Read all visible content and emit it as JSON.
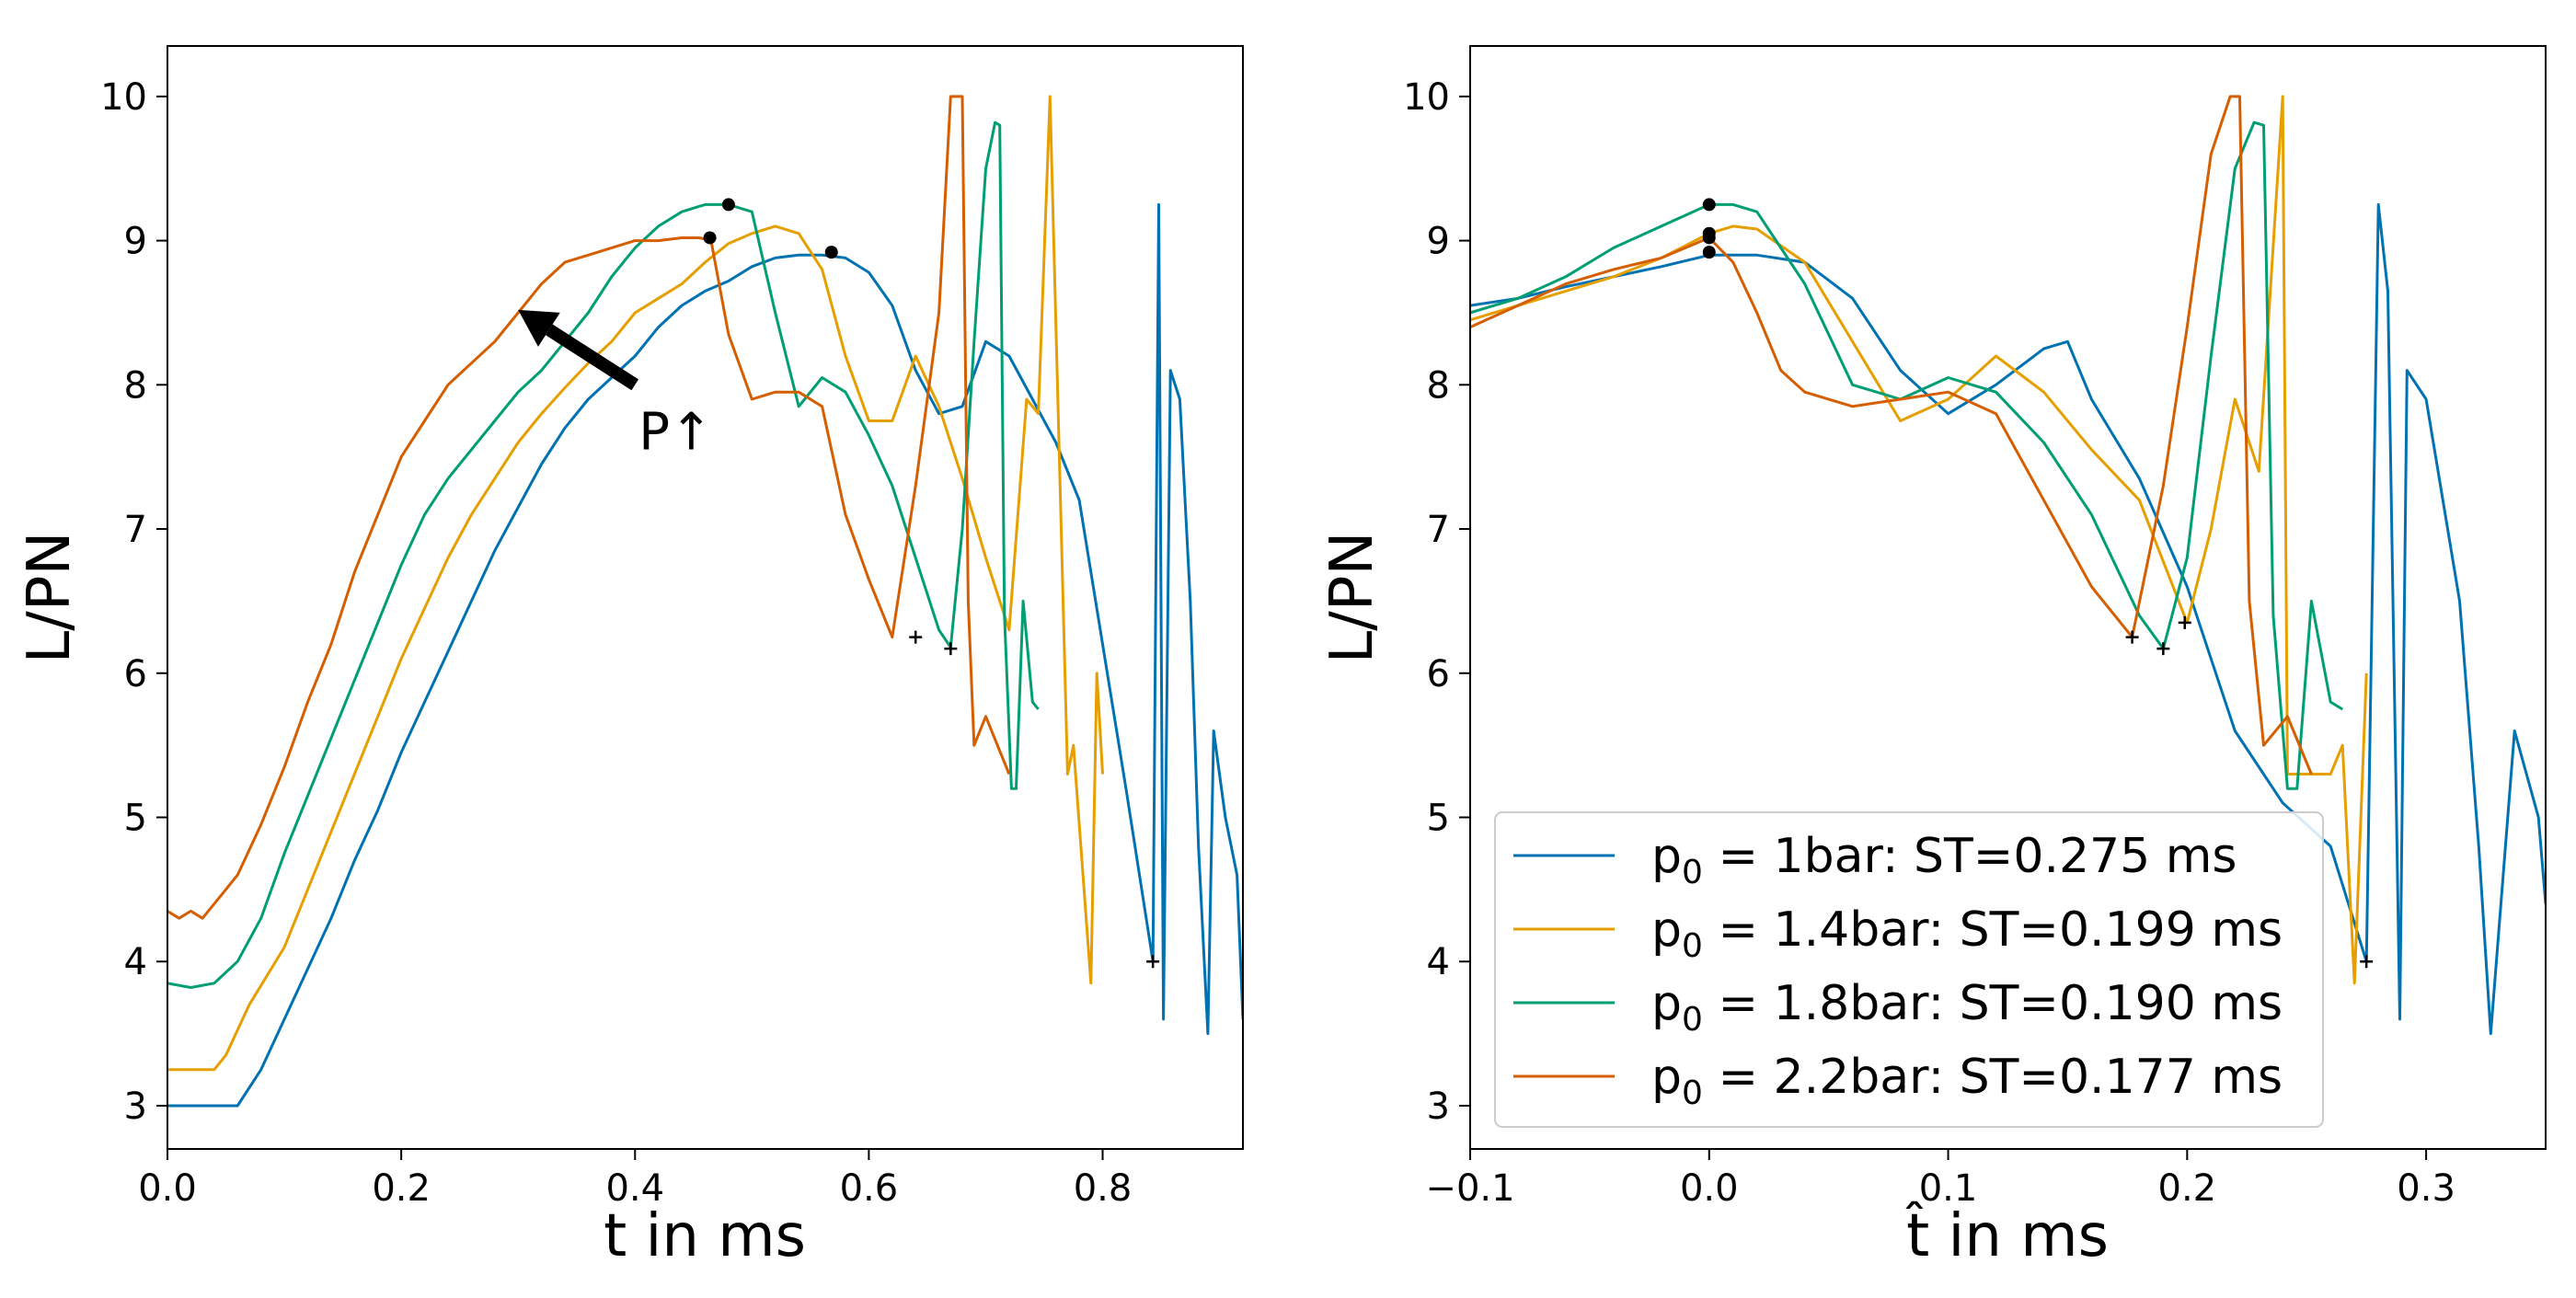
{
  "colors": {
    "series": [
      "#0072b2",
      "#e69f00",
      "#009e73",
      "#d55e00"
    ],
    "marker": "#000000",
    "frame": "#000000"
  },
  "chart_data": [
    {
      "type": "line",
      "xlabel": "t in ms",
      "ylabel": "L/PN",
      "xlim": [
        0.0,
        0.92
      ],
      "ylim": [
        2.7,
        10.35
      ],
      "xticks": [
        0.0,
        0.2,
        0.4,
        0.6,
        0.8
      ],
      "xtick_labels": [
        "0.0",
        "0.2",
        "0.4",
        "0.6",
        "0.8"
      ],
      "yticks": [
        3,
        4,
        5,
        6,
        7,
        8,
        9,
        10
      ],
      "ytick_labels": [
        "3",
        "4",
        "5",
        "6",
        "7",
        "8",
        "9",
        "10"
      ],
      "annotation": {
        "text": "P↑",
        "arrow_from": [
          0.4,
          8.0
        ],
        "arrow_to": [
          0.3,
          8.52
        ]
      },
      "series": [
        {
          "name": "p0=1bar",
          "x": [
            0.0,
            0.06,
            0.08,
            0.1,
            0.12,
            0.14,
            0.16,
            0.18,
            0.2,
            0.22,
            0.24,
            0.26,
            0.28,
            0.3,
            0.32,
            0.34,
            0.36,
            0.38,
            0.4,
            0.42,
            0.44,
            0.46,
            0.48,
            0.5,
            0.52,
            0.54,
            0.56,
            0.58,
            0.6,
            0.62,
            0.64,
            0.66,
            0.68,
            0.7,
            0.72,
            0.74,
            0.76,
            0.78,
            0.8,
            0.82,
            0.843,
            0.848,
            0.852,
            0.858,
            0.866,
            0.875,
            0.882,
            0.89,
            0.895,
            0.905,
            0.915,
            0.92
          ],
          "y": [
            3.0,
            3.0,
            3.25,
            3.6,
            3.95,
            4.3,
            4.7,
            5.05,
            5.45,
            5.8,
            6.15,
            6.5,
            6.85,
            7.15,
            7.45,
            7.7,
            7.9,
            8.05,
            8.2,
            8.4,
            8.55,
            8.65,
            8.72,
            8.82,
            8.88,
            8.9,
            8.9,
            8.88,
            8.78,
            8.55,
            8.1,
            7.8,
            7.85,
            8.3,
            8.2,
            7.9,
            7.6,
            7.2,
            6.2,
            5.2,
            4.0,
            9.25,
            3.6,
            8.1,
            7.9,
            6.5,
            4.8,
            3.5,
            5.6,
            5.0,
            4.6,
            3.6
          ],
          "markers": [
            {
              "x": 0.568,
              "y": 8.92,
              "type": "dot"
            },
            {
              "x": 0.843,
              "y": 4.0,
              "type": "plus"
            }
          ]
        },
        {
          "name": "p0=1.4bar",
          "x": [
            0.0,
            0.04,
            0.05,
            0.07,
            0.1,
            0.12,
            0.14,
            0.16,
            0.18,
            0.2,
            0.22,
            0.24,
            0.26,
            0.28,
            0.3,
            0.32,
            0.34,
            0.36,
            0.38,
            0.4,
            0.42,
            0.44,
            0.46,
            0.48,
            0.5,
            0.52,
            0.54,
            0.56,
            0.58,
            0.6,
            0.62,
            0.64,
            0.66,
            0.68,
            0.7,
            0.72,
            0.735,
            0.745,
            0.755,
            0.77,
            0.775,
            0.79,
            0.795,
            0.8
          ],
          "y": [
            3.25,
            3.25,
            3.35,
            3.7,
            4.1,
            4.5,
            4.9,
            5.3,
            5.7,
            6.1,
            6.45,
            6.8,
            7.1,
            7.35,
            7.6,
            7.8,
            7.98,
            8.15,
            8.3,
            8.5,
            8.6,
            8.7,
            8.85,
            8.98,
            9.05,
            9.1,
            9.05,
            8.8,
            8.2,
            7.75,
            7.75,
            8.2,
            7.85,
            7.35,
            6.8,
            6.3,
            7.9,
            7.8,
            10.0,
            5.3,
            5.5,
            3.85,
            6.0,
            5.3
          ]
        },
        {
          "name": "p0=1.8bar",
          "x": [
            0.0,
            0.02,
            0.04,
            0.06,
            0.08,
            0.1,
            0.12,
            0.14,
            0.16,
            0.18,
            0.2,
            0.22,
            0.24,
            0.26,
            0.28,
            0.3,
            0.32,
            0.34,
            0.36,
            0.38,
            0.4,
            0.42,
            0.44,
            0.46,
            0.47,
            0.48,
            0.5,
            0.52,
            0.54,
            0.56,
            0.58,
            0.6,
            0.62,
            0.64,
            0.66,
            0.67,
            0.68,
            0.69,
            0.7,
            0.708,
            0.712,
            0.716,
            0.722,
            0.726,
            0.732,
            0.74,
            0.745
          ],
          "y": [
            3.85,
            3.82,
            3.85,
            4.0,
            4.3,
            4.75,
            5.15,
            5.55,
            5.95,
            6.35,
            6.75,
            7.1,
            7.35,
            7.55,
            7.75,
            7.95,
            8.1,
            8.3,
            8.5,
            8.75,
            8.95,
            9.1,
            9.2,
            9.25,
            9.25,
            9.25,
            9.2,
            8.5,
            7.85,
            8.05,
            7.95,
            7.65,
            7.3,
            6.8,
            6.3,
            6.18,
            7.0,
            8.3,
            9.5,
            9.82,
            9.8,
            6.4,
            5.2,
            5.2,
            6.5,
            5.8,
            5.75
          ],
          "markers": [
            {
              "x": 0.48,
              "y": 9.25,
              "type": "dot"
            },
            {
              "x": 0.67,
              "y": 6.17,
              "type": "plus"
            }
          ]
        },
        {
          "name": "p0=2.2bar",
          "x": [
            0.0,
            0.01,
            0.02,
            0.03,
            0.04,
            0.05,
            0.06,
            0.08,
            0.1,
            0.12,
            0.14,
            0.16,
            0.18,
            0.2,
            0.22,
            0.24,
            0.26,
            0.28,
            0.3,
            0.32,
            0.34,
            0.36,
            0.38,
            0.4,
            0.42,
            0.44,
            0.455,
            0.465,
            0.48,
            0.5,
            0.52,
            0.54,
            0.56,
            0.58,
            0.6,
            0.62,
            0.64,
            0.66,
            0.67,
            0.68,
            0.685,
            0.69,
            0.7,
            0.71,
            0.72
          ],
          "y": [
            4.35,
            4.3,
            4.35,
            4.3,
            4.4,
            4.5,
            4.6,
            4.95,
            5.35,
            5.8,
            6.2,
            6.7,
            7.1,
            7.5,
            7.75,
            8.0,
            8.15,
            8.3,
            8.5,
            8.7,
            8.85,
            8.9,
            8.95,
            9.0,
            9.0,
            9.02,
            9.02,
            9.0,
            8.35,
            7.9,
            7.95,
            7.95,
            7.85,
            7.1,
            6.65,
            6.25,
            7.3,
            8.5,
            10.0,
            10.0,
            6.5,
            5.5,
            5.7,
            5.5,
            5.3
          ],
          "markers": [
            {
              "x": 0.464,
              "y": 9.02,
              "type": "dot"
            },
            {
              "x": 0.64,
              "y": 6.25,
              "type": "plus"
            }
          ]
        }
      ]
    },
    {
      "type": "line",
      "xlabel": "t̂ in ms",
      "ylabel": "L/PN",
      "xlim": [
        -0.1,
        0.35
      ],
      "ylim": [
        2.7,
        10.35
      ],
      "xticks": [
        -0.1,
        0.0,
        0.1,
        0.2,
        0.3
      ],
      "xtick_labels": [
        "−0.1",
        "0.0",
        "0.1",
        "0.2",
        "0.3"
      ],
      "yticks": [
        3,
        4,
        5,
        6,
        7,
        8,
        9,
        10
      ],
      "ytick_labels": [
        "3",
        "4",
        "5",
        "6",
        "7",
        "8",
        "9",
        "10"
      ],
      "legend": {
        "position": "lower-left",
        "entries": [
          {
            "prefix": "p",
            "sub": "0",
            "text": " = 1bar: ST=0.275 ms"
          },
          {
            "prefix": "p",
            "sub": "0",
            "text": " = 1.4bar: ST=0.199 ms"
          },
          {
            "prefix": "p",
            "sub": "0",
            "text": " = 1.8bar: ST=0.190 ms"
          },
          {
            "prefix": "p",
            "sub": "0",
            "text": " = 2.2bar: ST=0.177 ms"
          }
        ]
      },
      "series": [
        {
          "name": "p0=1bar",
          "x": [
            -0.1,
            -0.08,
            -0.06,
            -0.04,
            -0.02,
            0.0,
            0.02,
            0.04,
            0.06,
            0.08,
            0.1,
            0.12,
            0.14,
            0.15,
            0.16,
            0.18,
            0.2,
            0.22,
            0.24,
            0.26,
            0.275,
            0.28,
            0.284,
            0.289,
            0.292,
            0.3,
            0.314,
            0.322,
            0.327,
            0.337,
            0.347,
            0.35
          ],
          "y": [
            8.55,
            8.6,
            8.68,
            8.75,
            8.82,
            8.9,
            8.9,
            8.85,
            8.6,
            8.1,
            7.8,
            8.0,
            8.25,
            8.3,
            7.9,
            7.35,
            6.6,
            5.6,
            5.1,
            4.8,
            4.0,
            9.25,
            8.65,
            3.6,
            8.1,
            7.9,
            6.5,
            4.8,
            3.5,
            5.6,
            5.0,
            4.4
          ],
          "markers": [
            {
              "x": 0.0,
              "y": 8.92,
              "type": "dot"
            },
            {
              "x": 0.275,
              "y": 4.0,
              "type": "plus"
            }
          ]
        },
        {
          "name": "p0=1.4bar",
          "x": [
            -0.1,
            -0.08,
            -0.06,
            -0.04,
            -0.02,
            0.0,
            0.01,
            0.02,
            0.04,
            0.06,
            0.08,
            0.1,
            0.12,
            0.14,
            0.16,
            0.18,
            0.2,
            0.21,
            0.22,
            0.23,
            0.24,
            0.242,
            0.25,
            0.26,
            0.265,
            0.27,
            0.275
          ],
          "y": [
            8.45,
            8.55,
            8.65,
            8.75,
            8.88,
            9.05,
            9.1,
            9.08,
            8.85,
            8.3,
            7.75,
            7.9,
            8.2,
            7.95,
            7.55,
            7.2,
            6.35,
            7.0,
            7.9,
            7.4,
            10.0,
            5.3,
            5.3,
            5.3,
            5.5,
            3.85,
            6.0
          ],
          "markers": [
            {
              "x": 0.0,
              "y": 9.05,
              "type": "dot"
            },
            {
              "x": 0.199,
              "y": 6.35,
              "type": "plus"
            }
          ]
        },
        {
          "name": "p0=1.8bar",
          "x": [
            -0.1,
            -0.08,
            -0.06,
            -0.04,
            -0.02,
            0.0,
            0.01,
            0.02,
            0.04,
            0.06,
            0.08,
            0.1,
            0.12,
            0.14,
            0.16,
            0.18,
            0.19,
            0.2,
            0.21,
            0.22,
            0.228,
            0.232,
            0.236,
            0.242,
            0.246,
            0.252,
            0.26,
            0.265
          ],
          "y": [
            8.5,
            8.6,
            8.75,
            8.95,
            9.1,
            9.25,
            9.25,
            9.2,
            8.7,
            8.0,
            7.9,
            8.05,
            7.95,
            7.6,
            7.1,
            6.4,
            6.17,
            6.8,
            8.2,
            9.5,
            9.82,
            9.8,
            6.4,
            5.2,
            5.2,
            6.5,
            5.8,
            5.75
          ],
          "markers": [
            {
              "x": 0.0,
              "y": 9.25,
              "type": "dot"
            },
            {
              "x": 0.19,
              "y": 6.17,
              "type": "plus"
            }
          ]
        },
        {
          "name": "p0=2.2bar",
          "x": [
            -0.1,
            -0.08,
            -0.06,
            -0.04,
            -0.02,
            0.0,
            0.01,
            0.02,
            0.03,
            0.04,
            0.06,
            0.08,
            0.1,
            0.12,
            0.14,
            0.16,
            0.177,
            0.19,
            0.2,
            0.21,
            0.218,
            0.222,
            0.226,
            0.232,
            0.242,
            0.252
          ],
          "y": [
            8.4,
            8.55,
            8.7,
            8.8,
            8.88,
            9.02,
            8.85,
            8.5,
            8.1,
            7.95,
            7.85,
            7.9,
            7.95,
            7.8,
            7.2,
            6.6,
            6.25,
            7.3,
            8.4,
            9.6,
            10.0,
            10.0,
            6.5,
            5.5,
            5.7,
            5.3
          ],
          "markers": [
            {
              "x": 0.0,
              "y": 9.02,
              "type": "dot"
            },
            {
              "x": 0.177,
              "y": 6.25,
              "type": "plus"
            }
          ]
        }
      ]
    }
  ]
}
